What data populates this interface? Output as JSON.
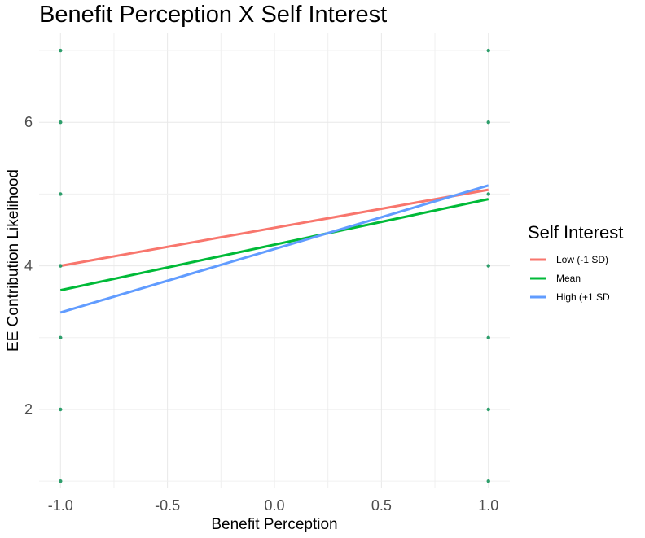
{
  "chart_data": {
    "type": "line",
    "title": "Benefit Perception X Self Interest",
    "xlabel": "Benefit Perception",
    "ylabel": "EE Contribution Likelihood",
    "xlim": [
      -1.1,
      1.1
    ],
    "ylim": [
      0.9,
      7.25
    ],
    "x_ticks": [
      -1.0,
      -0.5,
      0.0,
      0.5,
      1.0
    ],
    "x_tick_labels": [
      "-1.0",
      "-0.5",
      "0.0",
      "0.5",
      "1.0"
    ],
    "y_ticks": [
      2,
      4,
      6
    ],
    "y_tick_labels": [
      "2",
      "4",
      "6"
    ],
    "grid": true,
    "legend": {
      "title": "Self Interest",
      "placement": "right"
    },
    "series": [
      {
        "name": "Low (-1 SD)",
        "color": "#F8766D",
        "x": [
          -1.0,
          1.0
        ],
        "y": [
          4.0,
          5.06
        ]
      },
      {
        "name": "Mean",
        "color": "#00BA38",
        "x": [
          -1.0,
          1.0
        ],
        "y": [
          3.66,
          4.93
        ]
      },
      {
        "name": "High (+1 SD",
        "color": "#619CFF",
        "x": [
          -1.0,
          1.0
        ],
        "y": [
          3.35,
          5.12
        ]
      }
    ],
    "points": {
      "color": "#2E9E6B",
      "x": [
        -1,
        -1,
        -1,
        -1,
        -1,
        -1,
        -1,
        1,
        1,
        1,
        1,
        1,
        1,
        1
      ],
      "y": [
        7,
        6,
        5,
        4,
        3,
        2,
        1,
        7,
        6,
        5,
        4,
        3,
        2,
        1
      ]
    }
  }
}
